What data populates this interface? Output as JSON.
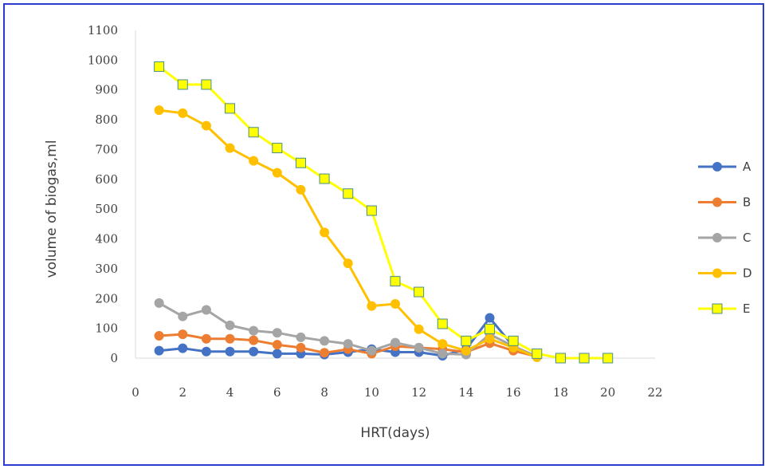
{
  "chart_data": {
    "type": "line",
    "title": "",
    "xlabel": "HRT(days)",
    "ylabel": "volume of biogas,ml",
    "xlim": [
      0,
      22
    ],
    "ylim": [
      0,
      1100
    ],
    "x_ticks": [
      "0",
      "2",
      "4",
      "6",
      "8",
      "10",
      "12",
      "14",
      "16",
      "18",
      "20",
      "22"
    ],
    "y_ticks": [
      "0",
      "100",
      "200",
      "300",
      "400",
      "500",
      "600",
      "700",
      "800",
      "900",
      "1000",
      "1100"
    ],
    "grid": false,
    "legend_position": "right",
    "series": [
      {
        "name": "A",
        "color": "#4472c4",
        "marker": "circle",
        "x": [
          1,
          2,
          3,
          4,
          5,
          6,
          7,
          8,
          9,
          10,
          11,
          12,
          13,
          14,
          15,
          16,
          17
        ],
        "y": [
          25,
          33,
          22,
          22,
          22,
          15,
          15,
          12,
          20,
          30,
          20,
          20,
          8,
          30,
          135,
          40,
          5
        ]
      },
      {
        "name": "B",
        "color": "#ed7d31",
        "marker": "circle",
        "x": [
          1,
          2,
          3,
          4,
          5,
          6,
          7,
          8,
          9,
          10,
          11,
          12,
          13,
          14,
          15,
          16,
          17
        ],
        "y": [
          75,
          80,
          65,
          65,
          60,
          45,
          35,
          18,
          30,
          15,
          40,
          35,
          30,
          20,
          50,
          25,
          5
        ]
      },
      {
        "name": "C",
        "color": "#a5a5a5",
        "marker": "circle",
        "x": [
          1,
          2,
          3,
          4,
          5,
          6,
          7,
          8,
          9,
          10,
          11,
          12,
          13,
          14,
          15,
          16,
          17
        ],
        "y": [
          185,
          140,
          162,
          110,
          92,
          85,
          70,
          58,
          48,
          25,
          52,
          35,
          15,
          12,
          80,
          40,
          5
        ]
      },
      {
        "name": "D",
        "color": "#ffc000",
        "marker": "circle",
        "x": [
          1,
          2,
          3,
          4,
          5,
          6,
          7,
          8,
          9,
          10,
          11,
          12,
          13,
          14,
          15,
          16,
          17
        ],
        "y": [
          832,
          822,
          780,
          705,
          662,
          622,
          565,
          422,
          318,
          175,
          182,
          97,
          48,
          25,
          65,
          35,
          3
        ]
      },
      {
        "name": "E",
        "color": "#ffff00",
        "markerStroke": "#4a8c8c",
        "marker": "square",
        "x": [
          1,
          2,
          3,
          4,
          5,
          6,
          7,
          8,
          9,
          10,
          11,
          12,
          13,
          14,
          15,
          16,
          17,
          18,
          19,
          20
        ],
        "y": [
          978,
          918,
          918,
          838,
          758,
          705,
          655,
          602,
          552,
          495,
          258,
          222,
          115,
          58,
          98,
          58,
          15,
          0,
          0,
          0
        ]
      }
    ]
  }
}
